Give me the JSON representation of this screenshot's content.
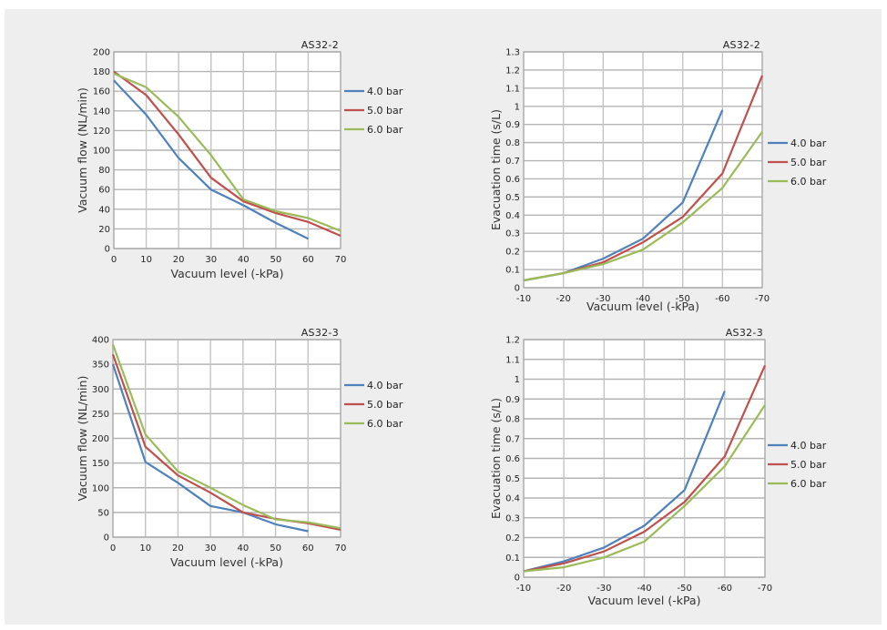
{
  "chart_data": [
    {
      "id": "flow-as32-2",
      "type": "line",
      "title": "AS32-2",
      "xlabel": "Vacuum level (-kPa)",
      "ylabel": "Vacuum flow (NL/min)",
      "x": [
        0,
        10,
        20,
        30,
        40,
        50,
        60,
        70
      ],
      "x_tick_labels": [
        "0",
        "10",
        "20",
        "30",
        "40",
        "50",
        "60",
        "70"
      ],
      "xlim": [
        0,
        70
      ],
      "ylim": [
        0,
        200
      ],
      "y_ticks": [
        0,
        20,
        40,
        60,
        80,
        100,
        120,
        140,
        160,
        180,
        200
      ],
      "y_tick_labels": [
        "0",
        "20",
        "40",
        "60",
        "80",
        "100",
        "120",
        "140",
        "160",
        "180",
        "200"
      ],
      "grid": true,
      "legend": "right",
      "series": [
        {
          "name": "4.0 bar",
          "color": "#4f81bd",
          "values": [
            171,
            136,
            92,
            60,
            44,
            26,
            10,
            null
          ]
        },
        {
          "name": "5.0 bar",
          "color": "#c0504d",
          "values": [
            180,
            156,
            116,
            72,
            48,
            36,
            27,
            13
          ]
        },
        {
          "name": "6.0 bar",
          "color": "#9bbb59",
          "values": [
            178,
            164,
            134,
            95,
            50,
            38,
            31,
            18
          ]
        }
      ]
    },
    {
      "id": "evac-as32-2",
      "type": "line",
      "title": "AS32-2",
      "xlabel": "Vacuum level (-kPa)",
      "ylabel": "Evacuation time (s/L)",
      "x": [
        -10,
        -20,
        -30,
        -40,
        -50,
        -60,
        -70
      ],
      "x_tick_labels": [
        "-10",
        "-20",
        "-30",
        "-40",
        "-50",
        "-60",
        "-70"
      ],
      "xlim": [
        -10,
        -70
      ],
      "ylim": [
        0,
        1.3
      ],
      "y_ticks": [
        0,
        0.1,
        0.2,
        0.3,
        0.4,
        0.5,
        0.6,
        0.7,
        0.8,
        0.9,
        1,
        1.1,
        1.2,
        1.3
      ],
      "y_tick_labels": [
        "0",
        "0.1",
        "0.2",
        "0.3",
        "0.4",
        "0.5",
        "0.6",
        "0.7",
        "0.8",
        "0.9",
        "1",
        "1.1",
        "1.2",
        "1.3"
      ],
      "grid": true,
      "legend": "right",
      "series": [
        {
          "name": "4.0 bar",
          "color": "#4f81bd",
          "values": [
            0.04,
            0.08,
            0.16,
            0.27,
            0.47,
            0.98,
            null
          ]
        },
        {
          "name": "5.0 bar",
          "color": "#c0504d",
          "values": [
            0.04,
            0.08,
            0.14,
            0.25,
            0.39,
            0.63,
            1.17
          ]
        },
        {
          "name": "6.0 bar",
          "color": "#9bbb59",
          "values": [
            0.04,
            0.08,
            0.13,
            0.21,
            0.36,
            0.55,
            0.86
          ]
        }
      ]
    },
    {
      "id": "flow-as32-3",
      "type": "line",
      "title": "AS32-3",
      "xlabel": "Vacuum level (-kPa)",
      "ylabel": "Vacuum flow (NL/min)",
      "x": [
        0,
        10,
        20,
        30,
        40,
        50,
        60,
        70
      ],
      "x_tick_labels": [
        "0",
        "10",
        "20",
        "30",
        "40",
        "50",
        "60",
        "70"
      ],
      "xlim": [
        0,
        70
      ],
      "ylim": [
        0,
        400
      ],
      "y_ticks": [
        0,
        50,
        100,
        150,
        200,
        250,
        300,
        350,
        400
      ],
      "y_tick_labels": [
        "0",
        "50",
        "100",
        "150",
        "200",
        "250",
        "300",
        "350",
        "400"
      ],
      "grid": true,
      "legend": "right",
      "series": [
        {
          "name": "4.0 bar",
          "color": "#4f81bd",
          "values": [
            350,
            152,
            110,
            63,
            50,
            26,
            12,
            null
          ]
        },
        {
          "name": "5.0 bar",
          "color": "#c0504d",
          "values": [
            370,
            183,
            125,
            90,
            50,
            37,
            28,
            15
          ]
        },
        {
          "name": "6.0 bar",
          "color": "#9bbb59",
          "values": [
            390,
            208,
            133,
            100,
            65,
            36,
            30,
            18
          ]
        }
      ]
    },
    {
      "id": "evac-as32-3",
      "type": "line",
      "title": "AS32-3",
      "xlabel": "Vacuum level (-kPa)",
      "ylabel": "Evacuation time (s/L)",
      "x": [
        -10,
        -20,
        -30,
        -40,
        -50,
        -60,
        -70
      ],
      "x_tick_labels": [
        "-10",
        "-20",
        "-30",
        "-40",
        "-50",
        "-60",
        "-70"
      ],
      "xlim": [
        -10,
        -70
      ],
      "ylim": [
        0,
        1.2
      ],
      "y_ticks": [
        0,
        0.1,
        0.2,
        0.3,
        0.4,
        0.5,
        0.6,
        0.7,
        0.8,
        0.9,
        1,
        1.1,
        1.2
      ],
      "y_tick_labels": [
        "0",
        "0.1",
        "0.2",
        "0.3",
        "0.4",
        "0.5",
        "0.6",
        "0.7",
        "0.8",
        "0.9",
        "1",
        "1.1",
        "1.2"
      ],
      "grid": true,
      "legend": "right",
      "series": [
        {
          "name": "4.0 bar",
          "color": "#4f81bd",
          "values": [
            0.03,
            0.08,
            0.15,
            0.26,
            0.44,
            0.94,
            null
          ]
        },
        {
          "name": "5.0 bar",
          "color": "#c0504d",
          "values": [
            0.03,
            0.07,
            0.13,
            0.23,
            0.38,
            0.61,
            1.07
          ]
        },
        {
          "name": "6.0 bar",
          "color": "#9bbb59",
          "values": [
            0.03,
            0.05,
            0.1,
            0.18,
            0.36,
            0.56,
            0.87
          ]
        }
      ]
    }
  ]
}
